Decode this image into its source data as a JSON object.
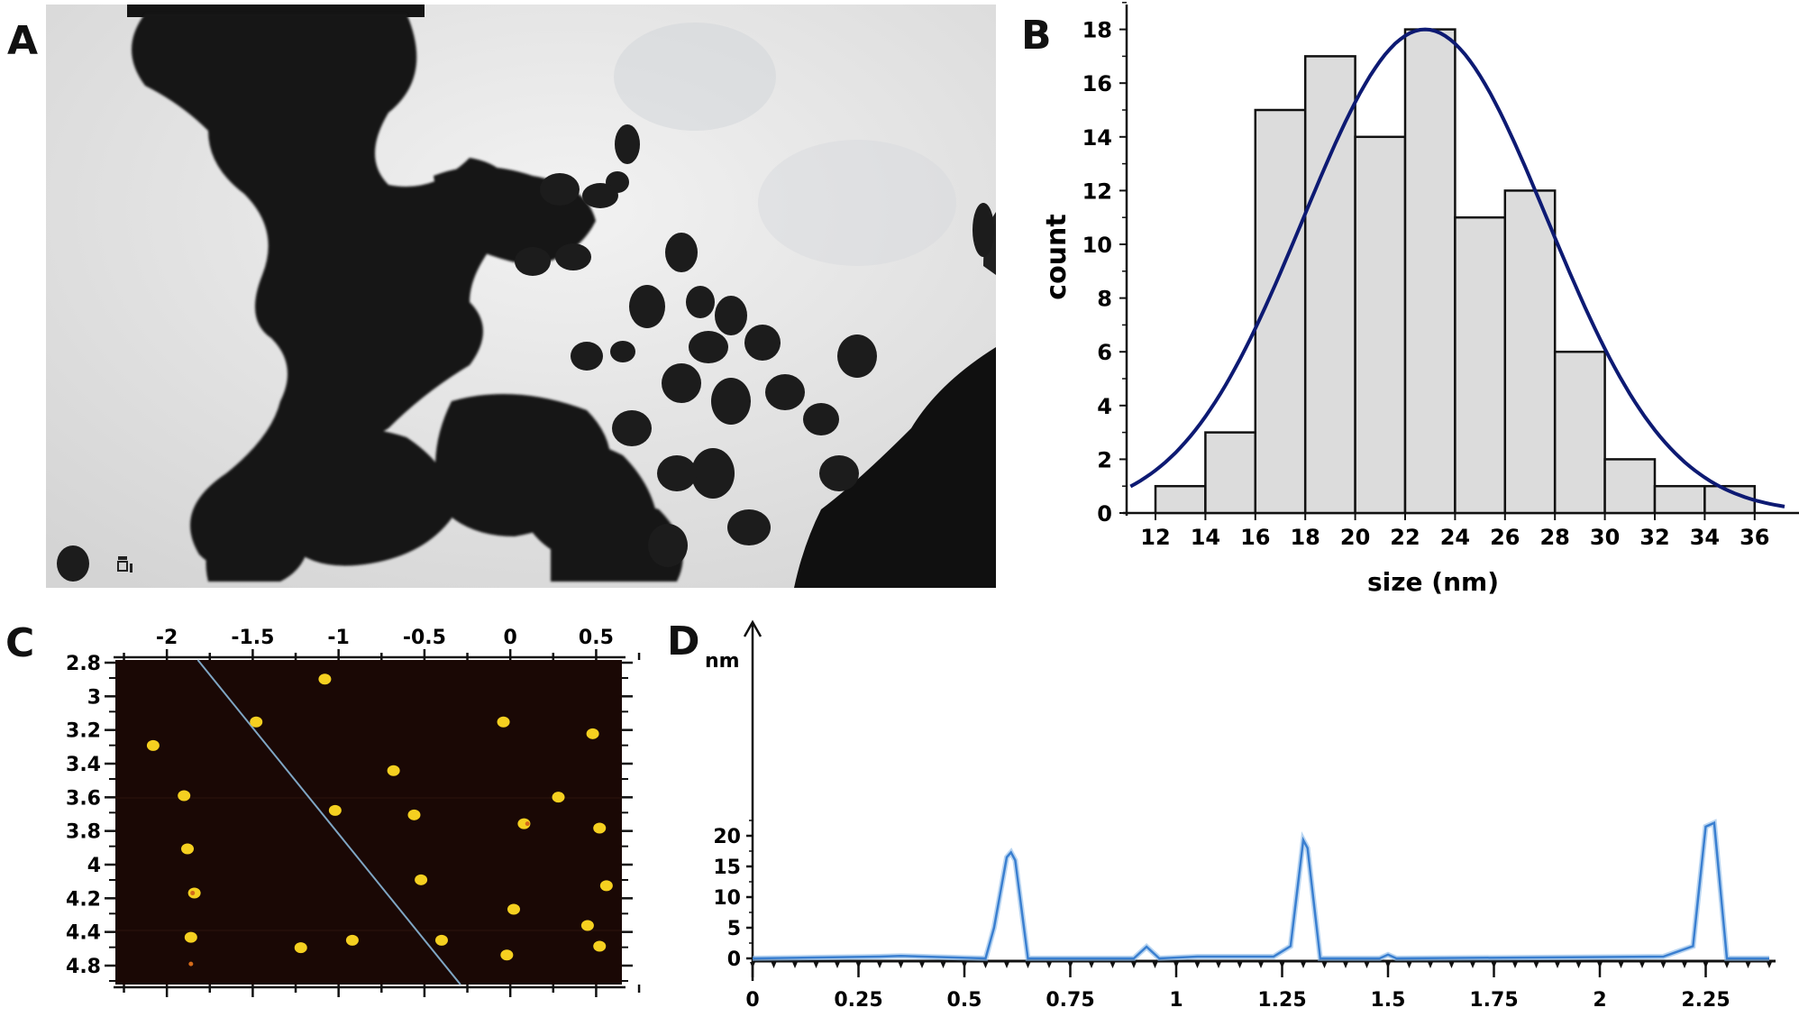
{
  "figure": {
    "panels": [
      {
        "id": "A",
        "label": "A",
        "type": "micrograph",
        "description": "TEM image of dark, rounded nanoparticles clustered in a diagonal band on a light background",
        "scale_bar_text": "",
        "colors": {
          "background": "#e6e6e6",
          "particles": "#161616"
        }
      },
      {
        "id": "B",
        "label": "B",
        "type": "histogram"
      },
      {
        "id": "C",
        "label": "C",
        "type": "afm-image"
      },
      {
        "id": "D",
        "label": "D",
        "type": "line-profile"
      }
    ]
  },
  "panelB": {
    "label": "B",
    "ylabel": "count",
    "xlabel": "size (nm)",
    "yticks": [
      "0",
      "2",
      "4",
      "6",
      "8",
      "10",
      "12",
      "14",
      "16",
      "18"
    ],
    "xticks": [
      "12",
      "14",
      "16",
      "18",
      "20",
      "22",
      "24",
      "26",
      "28",
      "30",
      "32",
      "34",
      "36"
    ],
    "bar_fill": "#dcdcdc",
    "curve_color": "#0d1a73"
  },
  "panelC": {
    "label": "C",
    "xticks": [
      "-2",
      "-1.5",
      "-1",
      "-0.5",
      "0",
      "0.5"
    ],
    "yticks": [
      "2.8",
      "3",
      "3.2",
      "3.4",
      "3.6",
      "3.8",
      "4",
      "4.2",
      "4.4",
      "4.8"
    ],
    "background": "#1a0805",
    "particle_color": "#f5d020",
    "line_color": "#7fa6c4"
  },
  "panelD": {
    "label": "D",
    "yunit": "nm",
    "yticks": [
      "0",
      "5",
      "10",
      "15",
      "20"
    ],
    "xticks": [
      "0",
      "0.25",
      "0.5",
      "0.75",
      "1",
      "1.25",
      "1.5",
      "1.75",
      "2",
      "2.25"
    ],
    "line_color": "#3a7fd0"
  },
  "chart_data": [
    {
      "type": "bar",
      "panel": "B",
      "title": "",
      "xlabel": "size (nm)",
      "ylabel": "count",
      "bin_edges": [
        12,
        14,
        16,
        18,
        20,
        22,
        24,
        26,
        28,
        30,
        32,
        34,
        36
      ],
      "categories": [
        "12-14",
        "14-16",
        "16-18",
        "18-20",
        "20-22",
        "22-24",
        "24-26",
        "26-28",
        "28-30",
        "30-32",
        "32-34",
        "34-36"
      ],
      "values": [
        1,
        3,
        15,
        17,
        14,
        18,
        11,
        12,
        6,
        2,
        1,
        1
      ],
      "fit": {
        "type": "gaussian",
        "peak_x": 22.8,
        "peak_y": 18,
        "sigma": 4.9
      },
      "xlim": [
        11,
        37
      ],
      "ylim": [
        0,
        18.5
      ],
      "grid": false,
      "legend": null
    },
    {
      "type": "scatter",
      "panel": "C",
      "title": "",
      "xlabel": "",
      "ylabel": "",
      "xlim": [
        -2.3,
        0.65
      ],
      "ylim": [
        2.8,
        5.0
      ],
      "xticks": [
        -2,
        -1.5,
        -1,
        -0.5,
        0,
        0.5
      ],
      "yticks_labels": [
        "2.8",
        "3",
        "3.2",
        "3.4",
        "3.6",
        "3.8",
        "4",
        "4.2",
        "4.4",
        "4.8"
      ],
      "points": [
        {
          "x": -1.08,
          "y": 2.93
        },
        {
          "x": -1.48,
          "y": 3.22
        },
        {
          "x": -2.08,
          "y": 3.38
        },
        {
          "x": -0.04,
          "y": 3.22
        },
        {
          "x": 0.48,
          "y": 3.3
        },
        {
          "x": -0.68,
          "y": 3.55
        },
        {
          "x": -1.9,
          "y": 3.72
        },
        {
          "x": 0.28,
          "y": 3.73
        },
        {
          "x": -1.02,
          "y": 3.82
        },
        {
          "x": -0.56,
          "y": 3.85
        },
        {
          "x": 0.08,
          "y": 3.91
        },
        {
          "x": 0.52,
          "y": 3.94
        },
        {
          "x": -1.88,
          "y": 4.08
        },
        {
          "x": -0.52,
          "y": 4.29
        },
        {
          "x": -1.84,
          "y": 4.38
        },
        {
          "x": 0.56,
          "y": 4.33
        },
        {
          "x": 0.02,
          "y": 4.49
        },
        {
          "x": 0.45,
          "y": 4.6
        },
        {
          "x": -1.86,
          "y": 4.68
        },
        {
          "x": -0.92,
          "y": 4.7
        },
        {
          "x": -1.22,
          "y": 4.75
        },
        {
          "x": -0.4,
          "y": 4.7
        },
        {
          "x": 0.52,
          "y": 4.74
        },
        {
          "x": -0.02,
          "y": 4.8
        }
      ],
      "profile_line": {
        "from": {
          "x": -1.82,
          "y": 2.79
        },
        "to": {
          "x": -0.29,
          "y": 4.98
        }
      }
    },
    {
      "type": "line",
      "panel": "D",
      "title": "",
      "xlabel": "",
      "ylabel": "nm",
      "xlim": [
        0,
        2.4
      ],
      "ylim": [
        -1,
        25
      ],
      "x": [
        0,
        0.3,
        0.35,
        0.55,
        0.57,
        0.6,
        0.61,
        0.62,
        0.65,
        0.9,
        0.93,
        0.96,
        1.05,
        1.23,
        1.27,
        1.3,
        1.31,
        1.34,
        1.48,
        1.5,
        1.52,
        2.15,
        2.22,
        2.25,
        2.27,
        2.3,
        2.4
      ],
      "values": [
        0,
        0.3,
        0.4,
        0,
        5,
        16.5,
        17.3,
        16,
        0,
        0,
        1.9,
        0,
        0.3,
        0.3,
        2,
        19.3,
        18,
        0,
        0,
        0.6,
        0,
        0.3,
        2,
        21.5,
        22.1,
        0,
        0
      ],
      "peaks": [
        {
          "x": 0.61,
          "y": 17.3
        },
        {
          "x": 0.93,
          "y": 1.9
        },
        {
          "x": 1.3,
          "y": 19.3
        },
        {
          "x": 1.5,
          "y": 0.6
        },
        {
          "x": 2.26,
          "y": 22.1
        }
      ]
    }
  ]
}
